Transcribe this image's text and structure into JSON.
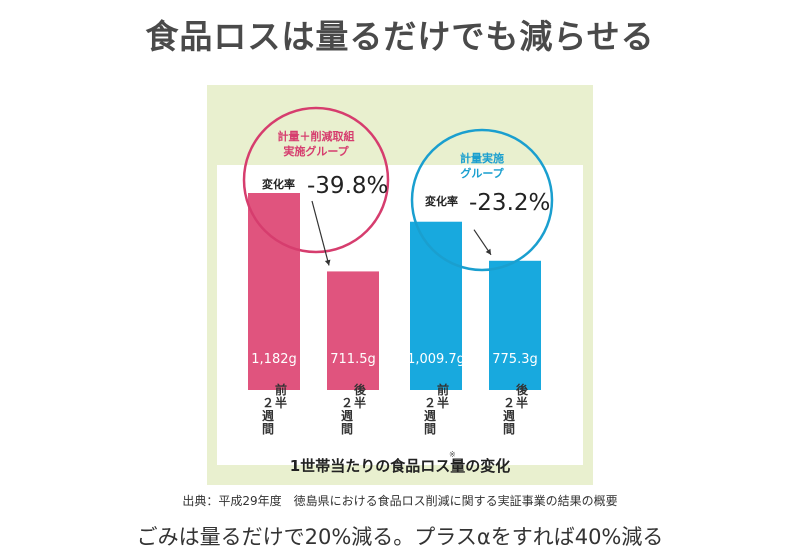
{
  "header": {
    "title": "食品ロスは量るだけでも減らせる"
  },
  "chart_data": {
    "type": "bar",
    "title": "1世帯当たりの食品ロス量の変化",
    "title_mark": "※",
    "unit": "g",
    "groups": [
      {
        "name": "計量＋削減取組 実施グループ",
        "name_lines": [
          "計量＋削減取組",
          "実施グループ"
        ],
        "color": "#e0547e",
        "ring_color": "#d63d6e",
        "change_label": "変化率",
        "change_value": "-39.8%",
        "bars": [
          {
            "period": "前半2週間",
            "value": 1182,
            "label": "1,182g",
            "tick": [
              "２",
              "週",
              "間"
            ],
            "tick2": [
              "前",
              "半"
            ]
          },
          {
            "period": "後半2週間",
            "value": 711.5,
            "label": "711.5g",
            "tick": [
              "２",
              "週",
              "間"
            ],
            "tick2": [
              "後",
              "半"
            ]
          }
        ]
      },
      {
        "name": "計量実施 グループ",
        "name_lines": [
          "計量実施",
          "グループ"
        ],
        "color": "#18a9de",
        "ring_color": "#1a9fcf",
        "change_label": "変化率",
        "change_value": "-23.2%",
        "bars": [
          {
            "period": "前半2週間",
            "value": 1009.7,
            "label": "1,009.7g",
            "tick": [
              "２",
              "週",
              "間"
            ],
            "tick2": [
              "前",
              "半"
            ]
          },
          {
            "period": "後半2週間",
            "value": 775.3,
            "label": "775.3g",
            "tick": [
              "２",
              "週",
              "間"
            ],
            "tick2": [
              "後",
              "半"
            ]
          }
        ]
      }
    ]
  },
  "footer": {
    "source": "出典：平成29年度　徳島県における食品ロス削減に関する実証事業の結果の概要",
    "tagline": "ごみは量るだけで20%減る。プラスαをすれば40%減る"
  }
}
